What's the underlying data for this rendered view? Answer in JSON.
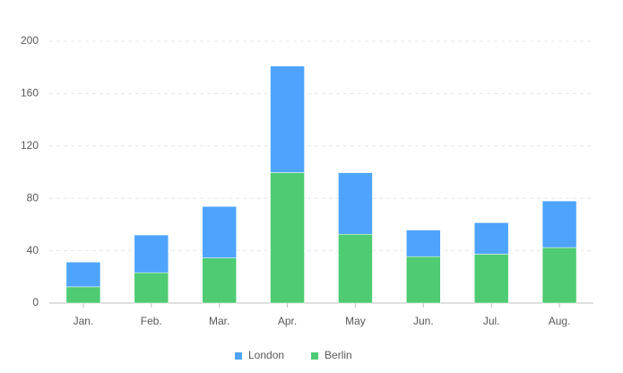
{
  "chart_data": {
    "type": "stacked_bar",
    "categories": [
      "Jan.",
      "Feb.",
      "Mar.",
      "Apr.",
      "May",
      "Jun.",
      "Jul.",
      "Aug."
    ],
    "series": [
      {
        "name": "London",
        "color": "#4ea4fc",
        "values": [
          18.9,
          28.8,
          39.3,
          81.4,
          47,
          20.3,
          24,
          35.6
        ]
      },
      {
        "name": "Berlin",
        "color": "#4ecb73",
        "values": [
          12.4,
          23.2,
          34.5,
          99.7,
          52.6,
          35.5,
          37.4,
          42.4
        ]
      }
    ],
    "ylim": [
      0,
      200
    ],
    "yticks": [
      0,
      40,
      80,
      120,
      160,
      200
    ],
    "grid": true,
    "legend": "bottom"
  }
}
